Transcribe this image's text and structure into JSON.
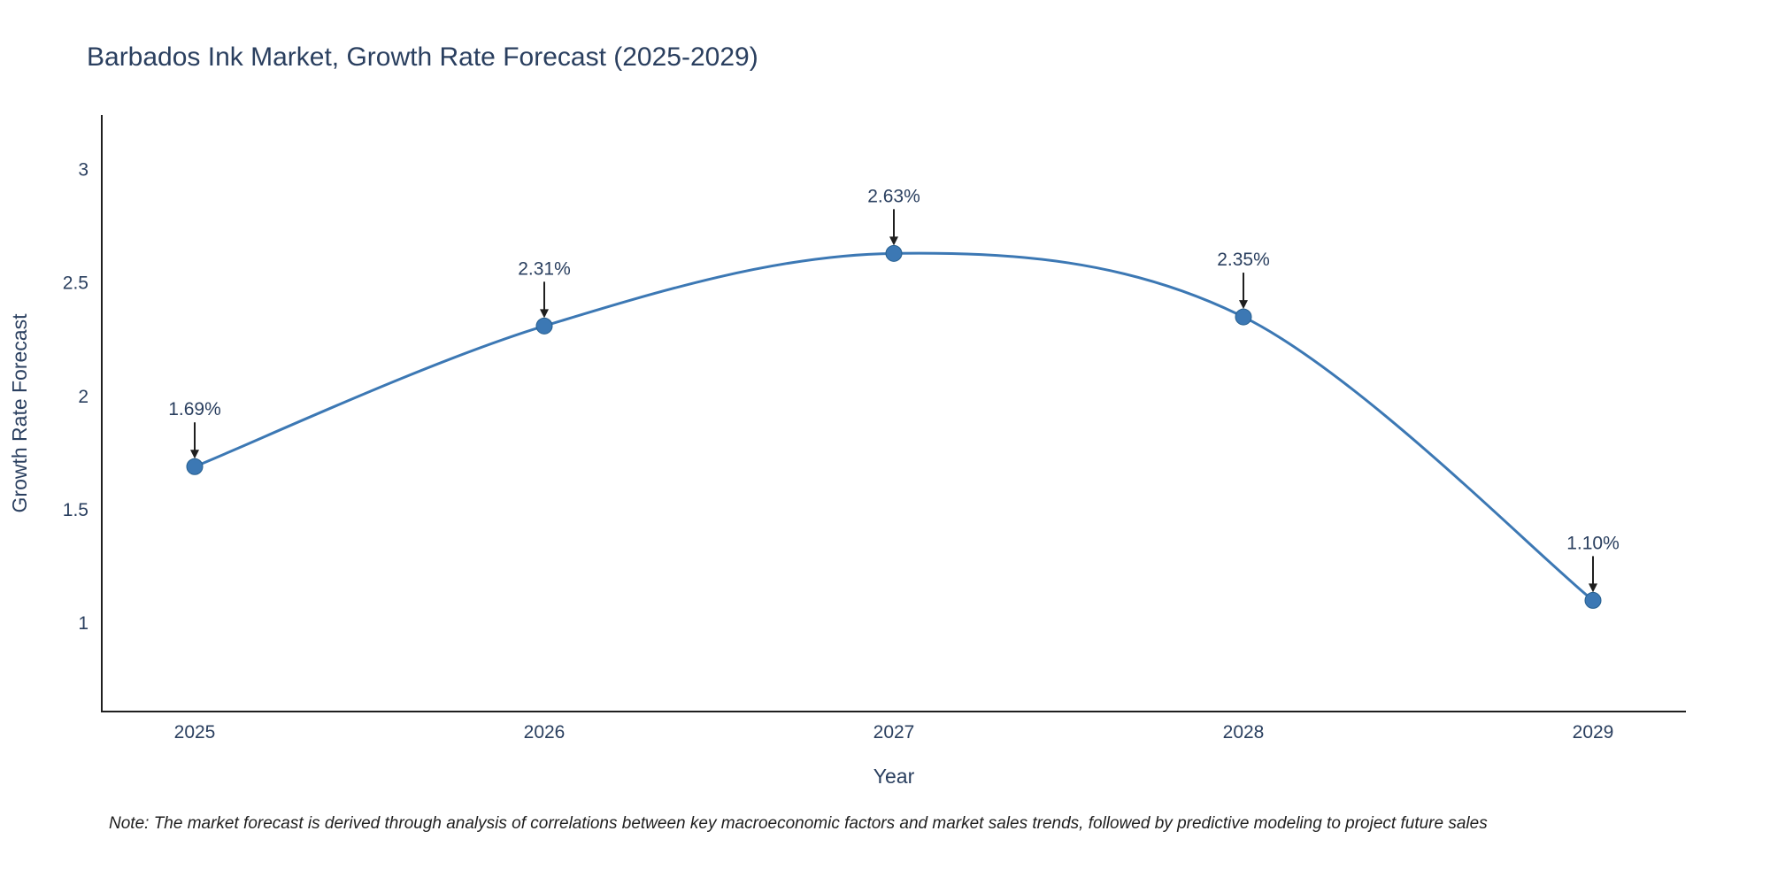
{
  "title": "Barbados Ink Market, Growth Rate Forecast (2025-2029)",
  "note": "Note: The market forecast is derived through analysis of correlations between key macroeconomic factors and market sales trends, followed by predictive modeling to project future sales",
  "chart_data": {
    "type": "line",
    "title": "Barbados Ink Market, Growth Rate Forecast (2025-2029)",
    "xlabel": "Year",
    "ylabel": "Growth Rate Forecast",
    "categories": [
      "2025",
      "2026",
      "2027",
      "2028",
      "2029"
    ],
    "values": [
      1.69,
      2.31,
      2.63,
      2.35,
      1.1
    ],
    "point_labels": [
      "1.69%",
      "2.31%",
      "2.63%",
      "2.35%",
      "1.10%"
    ],
    "yticks": [
      1,
      1.5,
      2,
      2.5,
      3
    ],
    "ylim": [
      0.61,
      3.24
    ],
    "grid": false,
    "legend": false,
    "line_shape": "spline",
    "line_color": "#3c78b4",
    "marker_color": "#3c78b4",
    "marker_edge_color": "#265f8f",
    "annotation_arrow_color": "#1f1f1f",
    "text_color": "#2a3f5f",
    "background_color": "#ffffff"
  }
}
